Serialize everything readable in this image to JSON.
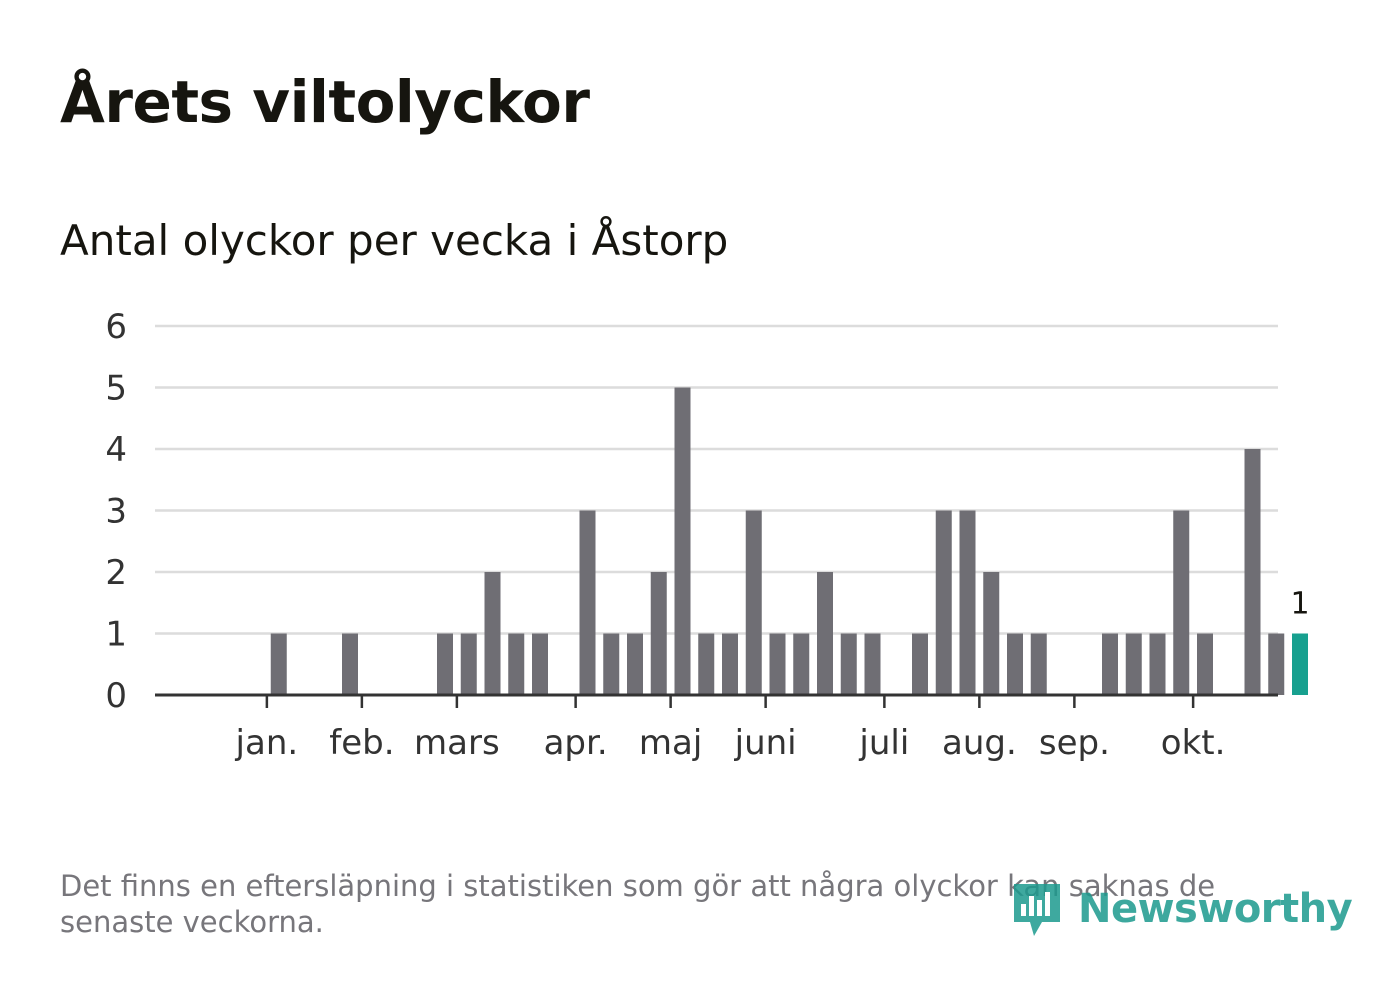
{
  "title": "Årets viltolyckor",
  "subtitle": "Antal olyckor per vecka i Åstorp",
  "note": "Det finns en eftersläpning i statistiken som gör att några olyckor kan saknas de senaste veckorna.",
  "brand": {
    "name": "Newsworthy",
    "color": "#1c9a8e"
  },
  "colors": {
    "bar": "#6f6e74",
    "highlight": "#17a08f",
    "grid": "#dcdcdc",
    "axis": "#333333"
  },
  "chart_data": {
    "type": "bar",
    "title": "Antal olyckor per vecka i Åstorp",
    "xlabel": "",
    "ylabel": "",
    "ylim": [
      0,
      6
    ],
    "yticks": [
      0,
      1,
      2,
      3,
      4,
      5,
      6
    ],
    "weeks": [
      1,
      2,
      3,
      4,
      5,
      6,
      7,
      8,
      9,
      10,
      11,
      12,
      13,
      14,
      15,
      16,
      17,
      18,
      19,
      20,
      21,
      22,
      23,
      24,
      25,
      26,
      27,
      28,
      29,
      30,
      31,
      32,
      33,
      34,
      35,
      36,
      37,
      38,
      39,
      40,
      41,
      42,
      43,
      44,
      45,
      46,
      47
    ],
    "values": [
      0,
      0,
      0,
      1,
      0,
      0,
      1,
      0,
      0,
      0,
      1,
      1,
      2,
      1,
      1,
      0,
      3,
      1,
      1,
      2,
      5,
      1,
      1,
      3,
      1,
      1,
      2,
      1,
      1,
      0,
      1,
      3,
      3,
      2,
      1,
      1,
      0,
      0,
      1,
      1,
      1,
      3,
      1,
      0,
      4,
      1,
      1
    ],
    "highlight_index": 46,
    "highlight_label": "1",
    "month_ticks": [
      {
        "label": "jan.",
        "week": 3.5
      },
      {
        "label": "feb.",
        "week": 7.5
      },
      {
        "label": "mars",
        "week": 11.5
      },
      {
        "label": "apr.",
        "week": 16.5
      },
      {
        "label": "maj",
        "week": 20.5
      },
      {
        "label": "juni",
        "week": 24.5
      },
      {
        "label": "juli",
        "week": 29.5
      },
      {
        "label": "aug.",
        "week": 33.5
      },
      {
        "label": "sep.",
        "week": 37.5
      },
      {
        "label": "okt.",
        "week": 42.5
      }
    ]
  }
}
